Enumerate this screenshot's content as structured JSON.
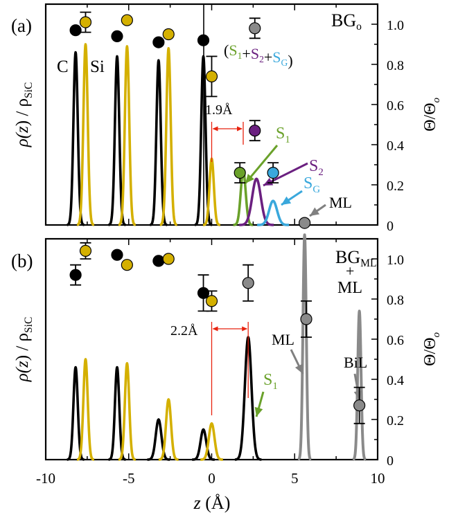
{
  "colors": {
    "C": "#000000",
    "Si": "#d4b000",
    "gray": "#8a8a8a",
    "S1": "#6aa12a",
    "S2": "#6b2080",
    "SG": "#3aa8dc",
    "red": "#e8220e"
  },
  "shared": {
    "xlabel": "z (Å)",
    "xlim": [
      -10,
      10
    ],
    "xticks": [
      "-10",
      "-5",
      "0",
      "5",
      "10"
    ],
    "ylabel_left": "ρ(z) / ρ_SiC",
    "ylabel_right": "Θ/Θo",
    "right_ylim": [
      0,
      1.1
    ],
    "right_yticks": [
      "0",
      "0.2",
      "0.4",
      "0.6",
      "0.8",
      "1.0"
    ]
  },
  "chart_data": [
    {
      "type": "line",
      "panel_label": "(a)",
      "title": "BGo",
      "annotations": {
        "C": "C",
        "Si": "Si",
        "sum_label": [
          "(",
          "S1",
          "+",
          "S2",
          "+",
          "SG",
          ")"
        ],
        "distance": "1.9Å",
        "S1": "S1",
        "S2": "S2",
        "SG": "SG",
        "ML": "ML"
      },
      "distance_marker": {
        "x_from": 0,
        "x_to": 1.9
      },
      "peaks": [
        {
          "series": "C",
          "center": -8.2,
          "height": 0.86,
          "width": 0.13
        },
        {
          "series": "C",
          "center": -5.7,
          "height": 0.84,
          "width": 0.13
        },
        {
          "series": "C",
          "center": -3.2,
          "height": 0.82,
          "width": 0.13
        },
        {
          "series": "C",
          "center": -0.5,
          "height": 0.84,
          "width": 0.13
        },
        {
          "series": "Si",
          "center": -7.6,
          "height": 0.9,
          "width": 0.13
        },
        {
          "series": "Si",
          "center": -5.1,
          "height": 0.89,
          "width": 0.13
        },
        {
          "series": "Si",
          "center": -2.6,
          "height": 0.88,
          "width": 0.13
        },
        {
          "series": "Si",
          "center": 0.0,
          "height": 0.33,
          "width": 0.13
        },
        {
          "series": "S1",
          "center": 1.9,
          "height": 0.27,
          "width": 0.15
        },
        {
          "series": "S2",
          "center": 2.7,
          "height": 0.23,
          "width": 0.26
        },
        {
          "series": "SG",
          "center": 3.7,
          "height": 0.12,
          "width": 0.24
        }
      ],
      "points": [
        {
          "series": "C",
          "x": -8.2,
          "y": 0.97,
          "err": null
        },
        {
          "series": "C",
          "x": -5.7,
          "y": 0.94,
          "err": null
        },
        {
          "series": "C",
          "x": -3.2,
          "y": 0.91,
          "err": null
        },
        {
          "series": "C",
          "x": -0.5,
          "y": 0.92,
          "err": null
        },
        {
          "series": "Si",
          "x": -7.6,
          "y": 1.01,
          "err": 0.05
        },
        {
          "series": "Si",
          "x": -5.1,
          "y": 1.02,
          "err": null
        },
        {
          "series": "Si",
          "x": -2.6,
          "y": 0.95,
          "err": null
        },
        {
          "series": "Si",
          "x": 0.0,
          "y": 0.74,
          "err": 0.1
        },
        {
          "series": "gray",
          "x": 2.6,
          "y": 0.98,
          "err": 0.05
        },
        {
          "series": "S2",
          "x": 2.6,
          "y": 0.47,
          "err": 0.05
        },
        {
          "series": "S1",
          "x": 1.7,
          "y": 0.26,
          "err": 0.05
        },
        {
          "series": "SG",
          "x": 3.7,
          "y": 0.26,
          "err": 0.05
        },
        {
          "series": "gray",
          "x": 5.6,
          "y": 0.01,
          "err": null
        }
      ]
    },
    {
      "type": "line",
      "panel_label": "(b)",
      "title": "BGML",
      "title_extra": [
        "+",
        "ML"
      ],
      "annotations": {
        "distance": "2.2Å",
        "S1": "S1",
        "ML": "ML",
        "BiL": "BiL"
      },
      "distance_marker": {
        "x_from": 0,
        "x_to": 2.2
      },
      "peaks": [
        {
          "series": "C",
          "center": -8.2,
          "height": 0.46,
          "width": 0.13
        },
        {
          "series": "C",
          "center": -5.7,
          "height": 0.46,
          "width": 0.13
        },
        {
          "series": "C",
          "center": -3.2,
          "height": 0.2,
          "width": 0.17
        },
        {
          "series": "C",
          "center": -0.5,
          "height": 0.15,
          "width": 0.17
        },
        {
          "series": "C",
          "center": 2.2,
          "height": 0.61,
          "width": 0.2
        },
        {
          "series": "Si",
          "center": -7.6,
          "height": 0.5,
          "width": 0.13
        },
        {
          "series": "Si",
          "center": -5.1,
          "height": 0.48,
          "width": 0.13
        },
        {
          "series": "Si",
          "center": -2.6,
          "height": 0.3,
          "width": 0.15
        },
        {
          "series": "Si",
          "center": 0.0,
          "height": 0.18,
          "width": 0.17
        },
        {
          "series": "gray",
          "center": 5.6,
          "height": 1.12,
          "width": 0.1
        },
        {
          "series": "gray",
          "center": 8.9,
          "height": 0.74,
          "width": 0.1
        }
      ],
      "points": [
        {
          "series": "C",
          "x": -8.2,
          "y": 0.92,
          "err": 0.05
        },
        {
          "series": "C",
          "x": -5.7,
          "y": 1.02,
          "err": null
        },
        {
          "series": "C",
          "x": -3.2,
          "y": 0.99,
          "err": null
        },
        {
          "series": "C",
          "x": -0.5,
          "y": 0.83,
          "err": 0.09
        },
        {
          "series": "Si",
          "x": -7.6,
          "y": 1.04,
          "err": 0.04
        },
        {
          "series": "Si",
          "x": -5.1,
          "y": 0.97,
          "err": null
        },
        {
          "series": "Si",
          "x": -2.6,
          "y": 1.0,
          "err": null
        },
        {
          "series": "Si",
          "x": 0.0,
          "y": 0.79,
          "err": 0.05
        },
        {
          "series": "gray",
          "x": 2.2,
          "y": 0.88,
          "err": 0.09
        },
        {
          "series": "gray",
          "x": 5.7,
          "y": 0.7,
          "err": 0.09
        },
        {
          "series": "gray",
          "x": 8.9,
          "y": 0.27,
          "err": 0.09
        }
      ]
    }
  ]
}
